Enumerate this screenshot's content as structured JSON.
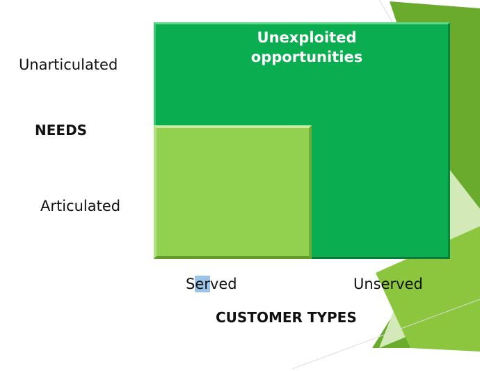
{
  "diagram": {
    "y_axis": {
      "top_label": "Unarticulated",
      "title": "NEEDS",
      "bottom_label": "Articulated"
    },
    "x_axis": {
      "left_label_parts": [
        "S",
        "er",
        "ved"
      ],
      "right_label": "Unserved",
      "title": "CUSTOMER TYPES"
    },
    "regions": {
      "large_box_label_line1": "Unexploited",
      "large_box_label_line2": "opportunities"
    }
  },
  "colors": {
    "large_box": "#0aad50",
    "small_box": "#92d050",
    "decoration_dark": "#6aab2e",
    "decoration_light": "#d4e9b8"
  }
}
